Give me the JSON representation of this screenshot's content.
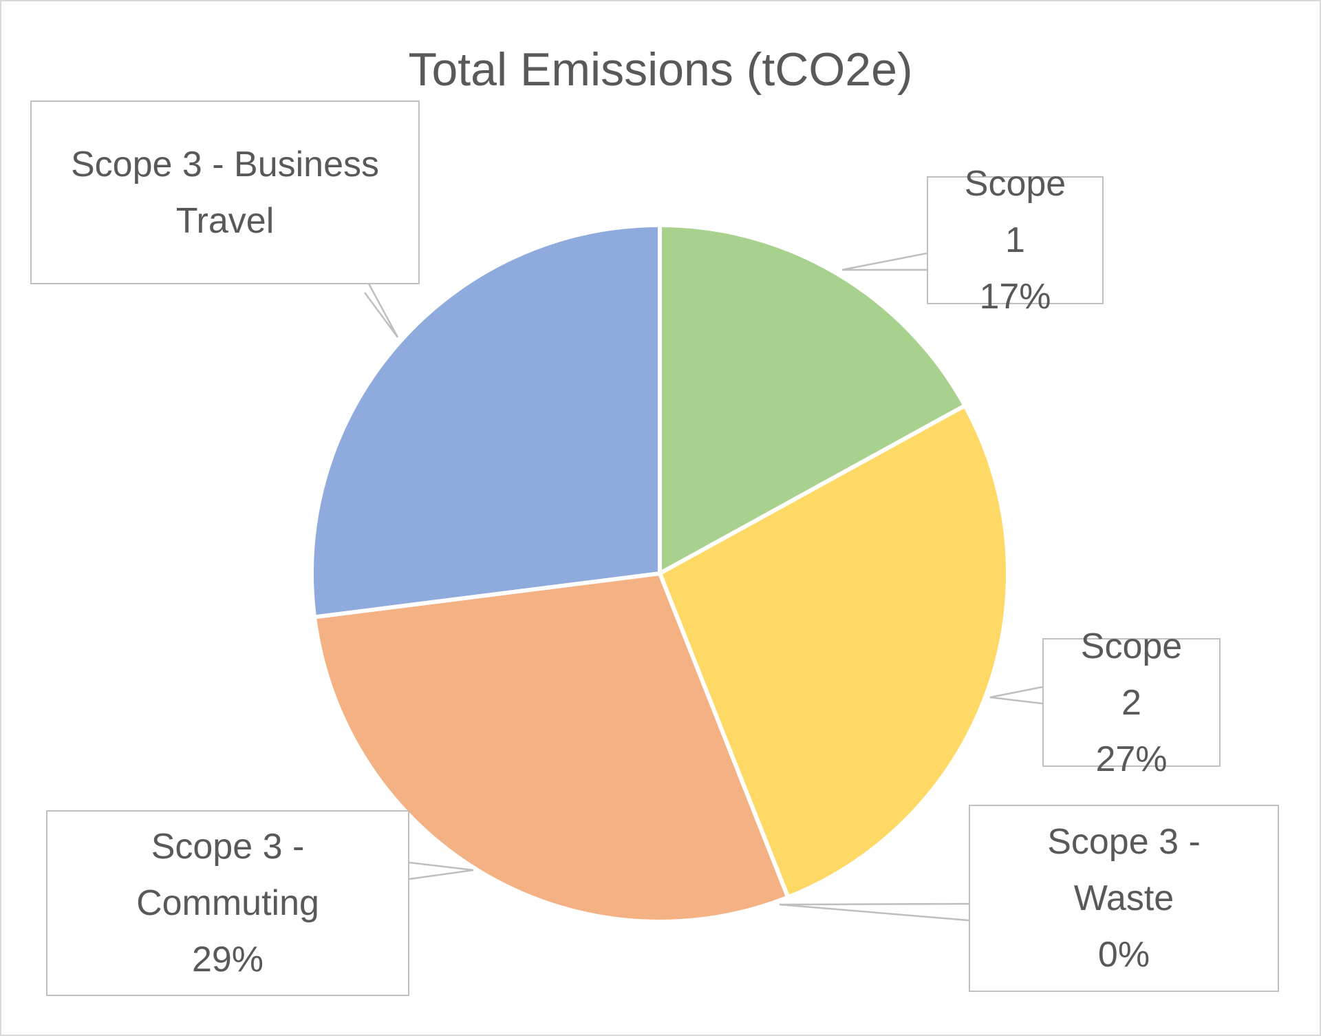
{
  "chart_data": {
    "type": "pie",
    "title": "Total Emissions (tCO2e)",
    "categories": [
      "Scope 1",
      "Scope 2",
      "Scope 3 - Waste",
      "Scope 3 - Commuting",
      "Scope 3 - Business Travel"
    ],
    "values": [
      17,
      27,
      0,
      29,
      27
    ],
    "value_labels": [
      "17%",
      "27%",
      "0%",
      "29%",
      null
    ],
    "colors": [
      "#a9d18e",
      "#ffd966",
      "#c9c9c9",
      "#f4b183",
      "#8faadc"
    ]
  }
}
